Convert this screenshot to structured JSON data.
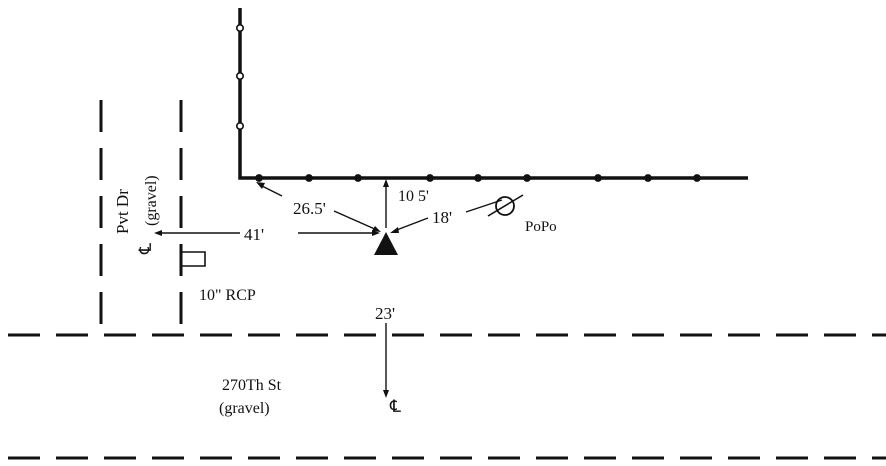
{
  "labels": {
    "pvt_dr": "Pvt Dr",
    "pvt_dr_surface": "(gravel)",
    "centerline_left": "℄",
    "rcp": "10\" RCP",
    "street": "270Th St",
    "street_surface": "(gravel)",
    "centerline_bottom": "℄",
    "pole": "PoPo"
  },
  "dimensions": {
    "to_centerline": "41'",
    "to_corner": "26.5'",
    "to_fence": "10 5'",
    "to_pole": "18'",
    "to_street": "23'"
  },
  "colors": {
    "ink": "#111111",
    "paper": "#ffffff"
  }
}
